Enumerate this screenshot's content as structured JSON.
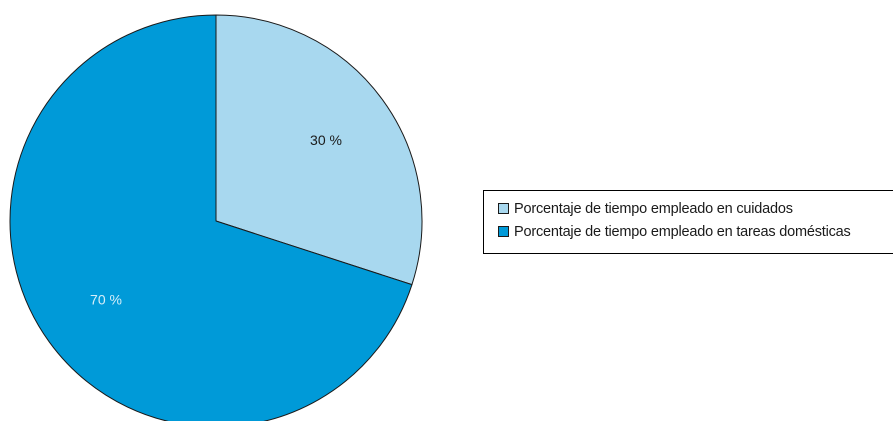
{
  "chart_data": {
    "type": "pie",
    "title": "",
    "slices": [
      {
        "label": "Porcentaje de tiempo empleado en cuidados",
        "value": 30,
        "display": "30 %",
        "color": "#a8d8ef",
        "label_color": "#1a1a1a"
      },
      {
        "label": "Porcentaje de tiempo empleado en tareas domésticas",
        "value": 70,
        "display": "70 %",
        "color": "#009ad8",
        "label_color": "#d6eef9"
      }
    ],
    "start_angle_deg": 0,
    "direction": "clockwise",
    "outline_color": "#1a1a1a",
    "legend_position": "right"
  }
}
